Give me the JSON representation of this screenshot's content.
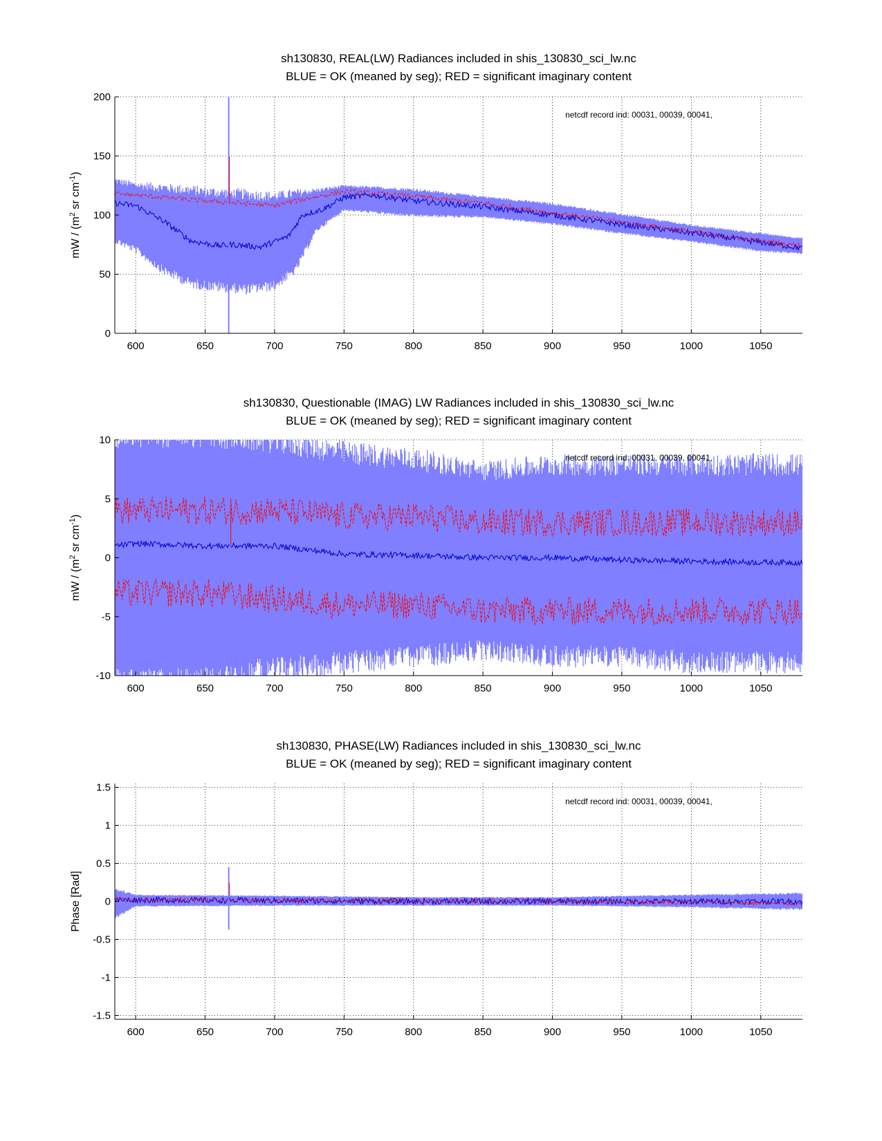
{
  "chart_data": [
    {
      "type": "line",
      "title": [
        "sh130830, REAL(LW) Radiances included in shis_130830_sci_lw.nc",
        "BLUE = OK (meaned by seg); RED = significant imaginary content"
      ],
      "ylabel": {
        "main": "mW / (m",
        "sup1": "2",
        "mid": " sr cm",
        "sup2": "-1",
        "end": ")"
      },
      "xlabel": "",
      "annotation": "netcdf record ind:  00031, 00039, 00041,",
      "xlim": [
        585,
        1080
      ],
      "ylim": [
        0,
        200
      ],
      "xticks": [
        600,
        650,
        700,
        750,
        800,
        850,
        900,
        950,
        1000,
        1050
      ],
      "yticks": [
        0,
        50,
        100,
        150,
        200
      ],
      "grid": true,
      "series": [
        {
          "name": "BLUE = OK (meaned by seg)",
          "role": "mean",
          "color": "#0000cc",
          "x": [
            585,
            600,
            620,
            640,
            660,
            670,
            690,
            710,
            720,
            735,
            750,
            770,
            800,
            850,
            900,
            950,
            1000,
            1050,
            1080
          ],
          "y": [
            110,
            108,
            95,
            78,
            74,
            75,
            73,
            82,
            100,
            105,
            115,
            117,
            112,
            107,
            100,
            92,
            85,
            77,
            72
          ]
        },
        {
          "name": "BLUE band upper",
          "role": "band_upper",
          "color": "#7f7fff",
          "x": [
            585,
            600,
            650,
            700,
            750,
            800,
            850,
            900,
            950,
            1000,
            1050,
            1080
          ],
          "y": [
            128,
            124,
            118,
            114,
            124,
            121,
            115,
            109,
            100,
            91,
            84,
            80
          ]
        },
        {
          "name": "BLUE band lower",
          "role": "band_lower",
          "color": "#7f7fff",
          "x": [
            585,
            600,
            620,
            640,
            660,
            680,
            700,
            715,
            730,
            750,
            800,
            850,
            900,
            950,
            1000,
            1050,
            1080
          ],
          "y": [
            80,
            72,
            55,
            44,
            41,
            39,
            42,
            55,
            88,
            105,
            100,
            99,
            93,
            85,
            78,
            70,
            68
          ]
        },
        {
          "name": "RED = significant imaginary content",
          "role": "flagged",
          "color": "#ff0000",
          "x": [
            585,
            600,
            650,
            700,
            715,
            750,
            800,
            850,
            900,
            950,
            1000,
            1050,
            1080
          ],
          "y": [
            118,
            117,
            112,
            108,
            112,
            120,
            116,
            110,
            102,
            94,
            86,
            78,
            74
          ]
        }
      ],
      "spikes": [
        {
          "x": 667,
          "ymin": 0,
          "ymax": 200
        }
      ]
    },
    {
      "type": "line",
      "title": [
        "sh130830, Questionable (IMAG) LW Radiances included in shis_130830_sci_lw.nc",
        "BLUE = OK (meaned by seg); RED = significant imaginary content"
      ],
      "ylabel": {
        "main": "mW / (m",
        "sup1": "2",
        "mid": " sr cm",
        "sup2": "-1",
        "end": ")"
      },
      "xlabel": "",
      "annotation": "netcdf record ind:  00031, 00039, 00041,",
      "xlim": [
        585,
        1080
      ],
      "ylim": [
        -10,
        10
      ],
      "xticks": [
        600,
        650,
        700,
        750,
        800,
        850,
        900,
        950,
        1000,
        1050
      ],
      "yticks": [
        -10,
        -5,
        0,
        5,
        10
      ],
      "grid": true,
      "series": [
        {
          "name": "BLUE = OK (meaned by seg)",
          "role": "mean",
          "color": "#0000cc",
          "x": [
            585,
            600,
            650,
            700,
            750,
            800,
            850,
            900,
            950,
            1000,
            1050,
            1080
          ],
          "y": [
            1.0,
            1.2,
            1.0,
            1.0,
            0.3,
            0.2,
            0.0,
            0.0,
            -0.2,
            -0.3,
            -0.4,
            -0.4
          ]
        },
        {
          "name": "BLUE band upper",
          "role": "band_upper",
          "color": "#7f7fff",
          "x": [
            585,
            650,
            700,
            750,
            800,
            850,
            900,
            950,
            1000,
            1050,
            1080
          ],
          "y": [
            10,
            10,
            9.5,
            8.5,
            8.0,
            7.0,
            7.5,
            7.5,
            7.5,
            7.5,
            7.5
          ]
        },
        {
          "name": "BLUE band lower",
          "role": "band_lower",
          "color": "#7f7fff",
          "x": [
            585,
            650,
            700,
            750,
            800,
            850,
            900,
            950,
            1000,
            1050,
            1080
          ],
          "y": [
            -10,
            -10,
            -9.0,
            -8.5,
            -8.0,
            -7.5,
            -8.0,
            -8.0,
            -8.5,
            -8.5,
            -8.5
          ]
        },
        {
          "name": "RED upper",
          "role": "flagged",
          "color": "#ff0000",
          "x": [
            585,
            650,
            700,
            750,
            800,
            850,
            900,
            950,
            1000,
            1050,
            1080
          ],
          "y": [
            4.0,
            4.0,
            4.0,
            3.5,
            3.5,
            3.0,
            3.0,
            3.0,
            3.0,
            3.0,
            3.0
          ]
        },
        {
          "name": "RED lower",
          "role": "flagged",
          "color": "#ff0000",
          "x": [
            585,
            650,
            700,
            750,
            800,
            850,
            900,
            950,
            1000,
            1050,
            1080
          ],
          "y": [
            -3.0,
            -3.0,
            -3.5,
            -4.0,
            -4.0,
            -4.5,
            -4.5,
            -4.5,
            -4.5,
            -4.5,
            -4.5
          ]
        }
      ],
      "spikes": [
        {
          "x": 668,
          "ymin": -10,
          "ymax": 10
        }
      ]
    },
    {
      "type": "line",
      "title": [
        "sh130830, PHASE(LW) Radiances included in shis_130830_sci_lw.nc",
        "BLUE = OK (meaned by seg); RED = significant imaginary content"
      ],
      "ylabel": {
        "main": "Phase [Rad]",
        "sup1": "",
        "mid": "",
        "sup2": "",
        "end": ""
      },
      "xlabel": "",
      "annotation": "netcdf record ind:  00031, 00039, 00041,",
      "xlim": [
        585,
        1080
      ],
      "ylim": [
        -1.55,
        1.55
      ],
      "xticks": [
        600,
        650,
        700,
        750,
        800,
        850,
        900,
        950,
        1000,
        1050
      ],
      "yticks": [
        -1.5,
        -1,
        -0.5,
        0,
        0.5,
        1,
        1.5
      ],
      "ytick_labels": [
        "-1.5",
        "-1",
        "-0.5",
        "0",
        "0.5",
        "1",
        "1.5"
      ],
      "grid": true,
      "series": [
        {
          "name": "BLUE = OK (meaned by seg)",
          "role": "mean",
          "color": "#0000cc",
          "x": [
            585,
            600,
            700,
            800,
            900,
            1000,
            1080
          ],
          "y": [
            0.02,
            0.02,
            0.01,
            0.0,
            0.0,
            0.0,
            0.0
          ]
        },
        {
          "name": "BLUE band upper",
          "role": "band_upper",
          "color": "#7f7fff",
          "x": [
            585,
            600,
            700,
            800,
            900,
            1000,
            1080
          ],
          "y": [
            0.15,
            0.08,
            0.07,
            0.05,
            0.05,
            0.08,
            0.1
          ]
        },
        {
          "name": "BLUE band lower",
          "role": "band_lower",
          "color": "#7f7fff",
          "x": [
            585,
            600,
            700,
            800,
            900,
            1000,
            1080
          ],
          "y": [
            -0.2,
            -0.06,
            -0.05,
            -0.05,
            -0.05,
            -0.07,
            -0.1
          ]
        },
        {
          "name": "RED = significant imaginary content",
          "role": "flagged",
          "color": "#ff0000",
          "x": [
            585,
            600,
            700,
            800,
            900,
            1000,
            1080
          ],
          "y": [
            0.03,
            0.02,
            0.01,
            0.01,
            0.0,
            -0.01,
            -0.03
          ]
        }
      ],
      "spikes": [
        {
          "x": 667,
          "ymin": -0.37,
          "ymax": 0.45
        }
      ]
    }
  ]
}
